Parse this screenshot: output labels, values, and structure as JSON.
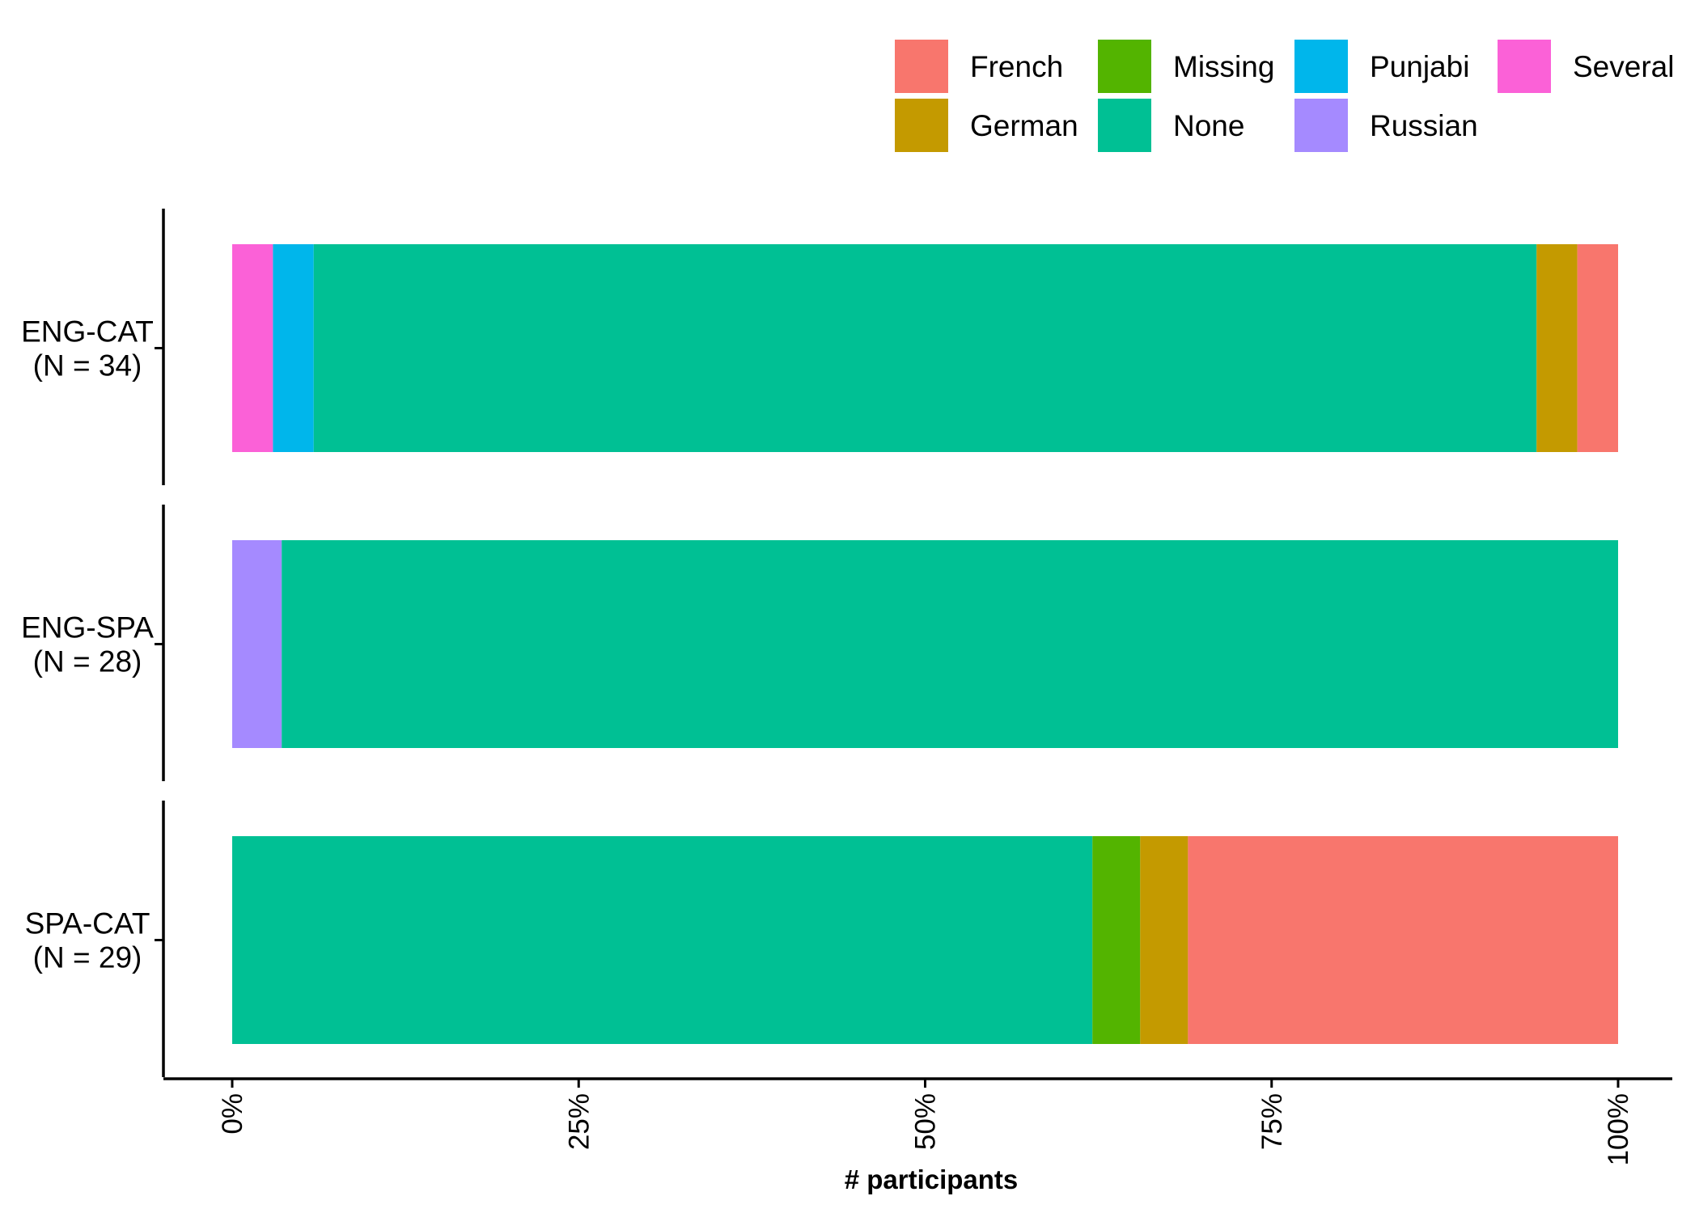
{
  "chart_data": {
    "type": "bar",
    "orientation": "horizontal",
    "stacked": true,
    "normalized": true,
    "xlabel": "# participants",
    "ylabel": "",
    "xlim": [
      0,
      1
    ],
    "x_ticks": [
      0,
      0.25,
      0.5,
      0.75,
      1
    ],
    "x_tick_labels": [
      "0%",
      "25%",
      "50%",
      "75%",
      "100%"
    ],
    "grid": false,
    "legend_position": "top-right",
    "categories": [
      {
        "line1": "ENG-CAT",
        "line2": "(N = 34)"
      },
      {
        "line1": "ENG-SPA",
        "line2": "(N = 28)"
      },
      {
        "line1": "SPA-CAT",
        "line2": "(N = 29)"
      }
    ],
    "stack_order": [
      "Several",
      "Russian",
      "Punjabi",
      "None",
      "Missing",
      "German",
      "French"
    ],
    "legend": [
      {
        "name": "French",
        "color": "#F8766D"
      },
      {
        "name": "German",
        "color": "#C49A00"
      },
      {
        "name": "Missing",
        "color": "#53B400"
      },
      {
        "name": "None",
        "color": "#00C094"
      },
      {
        "name": "Punjabi",
        "color": "#00B6EB"
      },
      {
        "name": "Russian",
        "color": "#A58AFF"
      },
      {
        "name": "Several",
        "color": "#FB61D7"
      }
    ],
    "series": [
      {
        "name": "French",
        "values": [
          1,
          0,
          9
        ]
      },
      {
        "name": "German",
        "values": [
          1,
          0,
          1
        ]
      },
      {
        "name": "Missing",
        "values": [
          0,
          0,
          1
        ]
      },
      {
        "name": "None",
        "values": [
          30,
          27,
          18
        ]
      },
      {
        "name": "Punjabi",
        "values": [
          1,
          0,
          0
        ]
      },
      {
        "name": "Russian",
        "values": [
          0,
          1,
          0
        ]
      },
      {
        "name": "Several",
        "values": [
          1,
          0,
          0
        ]
      }
    ]
  }
}
